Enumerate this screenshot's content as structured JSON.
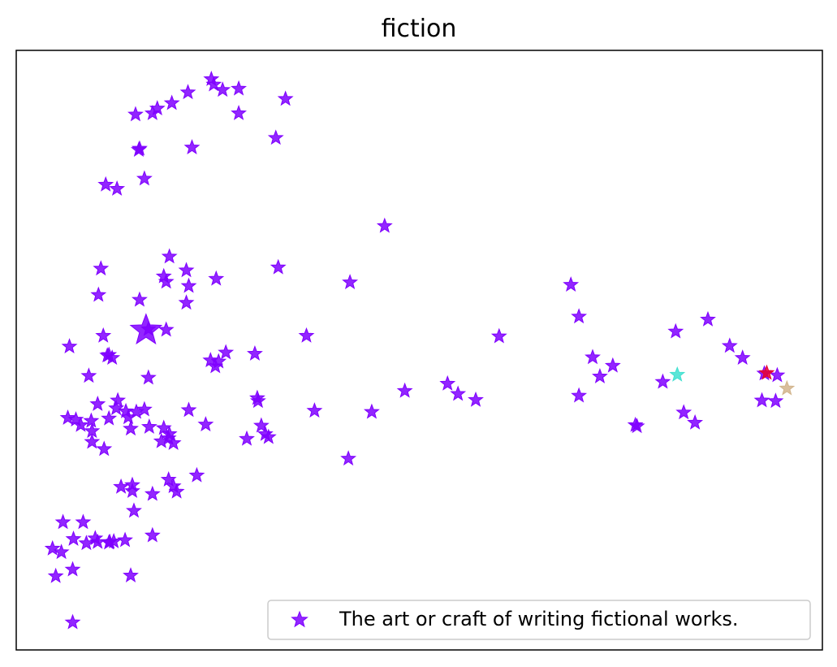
{
  "chart_data": {
    "type": "scatter",
    "title": "fiction",
    "xlabel": "",
    "ylabel": "",
    "xlim": [
      0,
      100
    ],
    "ylim": [
      0,
      100
    ],
    "ticks_visible": false,
    "grid": false,
    "legend": {
      "position": "lower-right",
      "label": "The art or craft of writing fictional works."
    },
    "marker": "star",
    "series": [
      {
        "name": "The art or craft of writing fictional works.",
        "color": "#7f00ff",
        "points": [
          [
            24.2,
            95.2
          ],
          [
            24.5,
            94.3
          ],
          [
            25.6,
            93.4
          ],
          [
            27.6,
            93.6
          ],
          [
            33.4,
            91.9
          ],
          [
            21.3,
            93.0
          ],
          [
            19.3,
            91.2
          ],
          [
            17.5,
            90.3
          ],
          [
            16.9,
            89.5
          ],
          [
            14.8,
            89.3
          ],
          [
            27.6,
            89.5
          ],
          [
            32.2,
            85.4
          ],
          [
            21.8,
            83.8
          ],
          [
            15.3,
            83.6
          ],
          [
            15.2,
            83.4
          ],
          [
            15.9,
            78.6
          ],
          [
            11.1,
            77.6
          ],
          [
            12.5,
            76.9
          ],
          [
            45.7,
            70.7
          ],
          [
            19.0,
            65.6
          ],
          [
            10.5,
            63.6
          ],
          [
            32.5,
            63.8
          ],
          [
            21.1,
            63.3
          ],
          [
            18.3,
            62.3
          ],
          [
            18.6,
            61.4
          ],
          [
            24.8,
            61.9
          ],
          [
            41.4,
            61.3
          ],
          [
            21.4,
            60.7
          ],
          [
            10.2,
            59.2
          ],
          [
            15.3,
            58.4
          ],
          [
            21.1,
            57.9
          ],
          [
            16.4,
            53.5
          ],
          [
            18.6,
            53.4
          ],
          [
            10.8,
            52.4
          ],
          [
            36.0,
            52.4
          ],
          [
            6.6,
            50.6
          ],
          [
            11.3,
            49.1
          ],
          [
            11.9,
            48.7
          ],
          [
            11.5,
            49.2
          ],
          [
            26.0,
            49.6
          ],
          [
            29.6,
            49.4
          ],
          [
            24.1,
            48.3
          ],
          [
            25.1,
            48.1
          ],
          [
            24.7,
            47.3
          ],
          [
            9.0,
            45.7
          ],
          [
            16.4,
            45.4
          ],
          [
            59.9,
            52.3
          ],
          [
            68.8,
            60.9
          ],
          [
            69.8,
            55.6
          ],
          [
            71.5,
            48.8
          ],
          [
            74.0,
            47.4
          ],
          [
            72.4,
            45.6
          ],
          [
            81.8,
            53.1
          ],
          [
            85.8,
            55.1
          ],
          [
            88.5,
            50.7
          ],
          [
            90.1,
            48.7
          ],
          [
            94.4,
            45.8
          ],
          [
            92.8,
            46.1
          ],
          [
            80.2,
            44.7
          ],
          [
            53.5,
            44.4
          ],
          [
            54.8,
            42.7
          ],
          [
            57.0,
            41.7
          ],
          [
            48.2,
            43.2
          ],
          [
            69.8,
            42.4
          ],
          [
            92.5,
            41.6
          ],
          [
            94.2,
            41.5
          ],
          [
            29.9,
            42.0
          ],
          [
            30.0,
            41.5
          ],
          [
            12.6,
            41.6
          ],
          [
            10.1,
            41.0
          ],
          [
            12.4,
            40.3
          ],
          [
            15.9,
            40.1
          ],
          [
            13.6,
            39.8
          ],
          [
            13.9,
            38.8
          ],
          [
            11.5,
            38.6
          ],
          [
            14.9,
            39.7
          ],
          [
            6.4,
            38.7
          ],
          [
            7.4,
            38.4
          ],
          [
            8.0,
            37.5
          ],
          [
            9.3,
            38.2
          ],
          [
            14.2,
            36.9
          ],
          [
            9.4,
            36.5
          ],
          [
            18.3,
            37.0
          ],
          [
            16.5,
            37.2
          ],
          [
            19.0,
            36.0
          ],
          [
            21.4,
            40.0
          ],
          [
            23.5,
            37.6
          ],
          [
            30.4,
            37.4
          ],
          [
            30.9,
            36.0
          ],
          [
            28.6,
            35.2
          ],
          [
            37.0,
            39.9
          ],
          [
            44.1,
            39.7
          ],
          [
            76.8,
            37.5
          ],
          [
            77.0,
            37.3
          ],
          [
            82.8,
            39.6
          ],
          [
            84.2,
            37.9
          ],
          [
            9.4,
            34.7
          ],
          [
            10.9,
            33.5
          ],
          [
            31.3,
            35.5
          ],
          [
            18.9,
            35.3
          ],
          [
            18.0,
            34.8
          ],
          [
            19.5,
            34.5
          ],
          [
            41.2,
            31.9
          ],
          [
            22.4,
            29.1
          ],
          [
            18.9,
            28.4
          ],
          [
            19.5,
            27.3
          ],
          [
            13.0,
            27.2
          ],
          [
            14.4,
            27.5
          ],
          [
            14.4,
            26.5
          ],
          [
            16.9,
            26.0
          ],
          [
            19.9,
            26.4
          ],
          [
            14.6,
            23.2
          ],
          [
            5.8,
            21.3
          ],
          [
            8.3,
            21.3
          ],
          [
            16.9,
            19.1
          ],
          [
            7.1,
            18.5
          ],
          [
            9.8,
            18.6
          ],
          [
            10.1,
            18.0
          ],
          [
            11.6,
            18.0
          ],
          [
            12.1,
            18.1
          ],
          [
            13.5,
            18.3
          ],
          [
            4.5,
            16.9
          ],
          [
            5.6,
            16.3
          ],
          [
            8.7,
            17.8
          ],
          [
            11.5,
            17.9
          ],
          [
            7.0,
            13.4
          ],
          [
            4.9,
            12.3
          ],
          [
            14.2,
            12.4
          ],
          [
            7.0,
            4.6
          ]
        ]
      },
      {
        "name": "",
        "color": "#e8002c",
        "points": [
          [
            93.1,
            46.2
          ]
        ]
      },
      {
        "name": "",
        "color": "#d2b48c",
        "points": [
          [
            95.6,
            43.6
          ]
        ]
      },
      {
        "name": "",
        "color": "#40e0d0",
        "points": [
          [
            82.0,
            45.9
          ]
        ]
      }
    ],
    "highlight": {
      "color": "#7f00ff",
      "point": [
        16.1,
        53.3
      ],
      "size": "large"
    }
  }
}
